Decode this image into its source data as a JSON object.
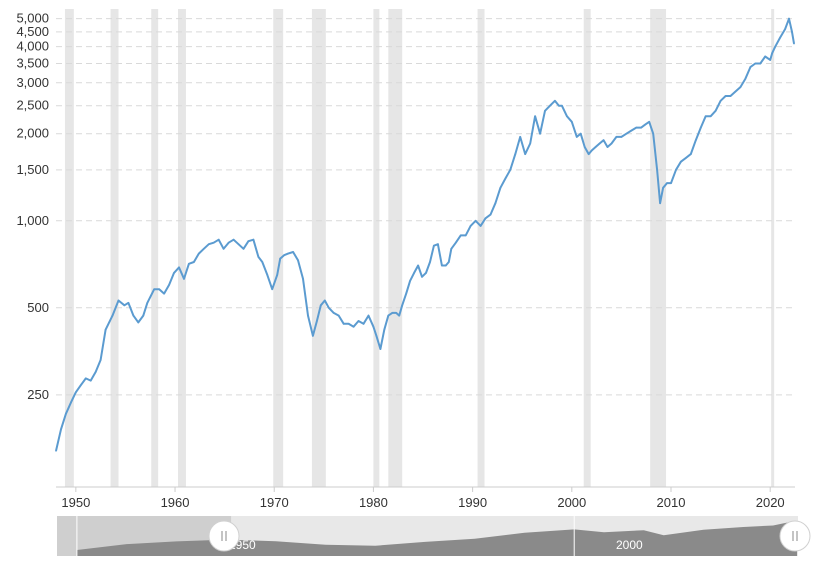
{
  "colors": {
    "series": "#5b9bd0",
    "recession": "#e6e6e6",
    "grid": "#d9d9d9",
    "navigator_fill": "#8a8a8a",
    "navigator_bg": "#e8e8e8",
    "navigator_selected": "#cfcfcf"
  },
  "chart_data": {
    "type": "line",
    "title": "",
    "xlabel": "",
    "ylabel": "",
    "y_scale": "log",
    "xlim": [
      1948,
      2022.5
    ],
    "ylim": [
      120,
      5400
    ],
    "grid": "horizontal dashed",
    "y_ticks": [
      {
        "value": 250,
        "label": "250"
      },
      {
        "value": 500,
        "label": "500"
      },
      {
        "value": 1000,
        "label": "1,000"
      },
      {
        "value": 1500,
        "label": "1,500"
      },
      {
        "value": 2000,
        "label": "2,000"
      },
      {
        "value": 2500,
        "label": "2,500"
      },
      {
        "value": 3000,
        "label": "3,000"
      },
      {
        "value": 3500,
        "label": "3,500"
      },
      {
        "value": 4000,
        "label": "4,000"
      },
      {
        "value": 4500,
        "label": "4,500"
      },
      {
        "value": 5000,
        "label": "5,000"
      }
    ],
    "x_ticks": [
      {
        "value": 1950,
        "label": "1950"
      },
      {
        "value": 1960,
        "label": "1960"
      },
      {
        "value": 1970,
        "label": "1970"
      },
      {
        "value": 1980,
        "label": "1980"
      },
      {
        "value": 1990,
        "label": "1990"
      },
      {
        "value": 2000,
        "label": "2000"
      },
      {
        "value": 2010,
        "label": "2010"
      },
      {
        "value": 2020,
        "label": "2020"
      }
    ],
    "recessions": [
      [
        1948.9,
        1949.8
      ],
      [
        1953.5,
        1954.3
      ],
      [
        1957.6,
        1958.3
      ],
      [
        1960.3,
        1961.1
      ],
      [
        1969.9,
        1970.9
      ],
      [
        1973.8,
        1975.2
      ],
      [
        1980.0,
        1980.6
      ],
      [
        1981.5,
        1982.9
      ],
      [
        1990.5,
        1991.2
      ],
      [
        2001.2,
        2001.9
      ],
      [
        2007.9,
        2009.5
      ],
      [
        2020.1,
        2020.4
      ]
    ],
    "series": [
      {
        "x": [
          1948.0,
          1948.5,
          1949.0,
          1949.5,
          1950.0,
          1950.5,
          1951.0,
          1951.5,
          1952.0,
          1952.5,
          1953.0,
          1953.7,
          1954.3,
          1954.9,
          1955.3,
          1955.8,
          1956.3,
          1956.8,
          1957.2,
          1957.9,
          1958.4,
          1958.9,
          1959.4,
          1959.9,
          1960.4,
          1960.9,
          1961.4,
          1961.9,
          1962.4,
          1962.9,
          1963.4,
          1963.9,
          1964.4,
          1964.9,
          1965.4,
          1965.9,
          1966.4,
          1966.9,
          1967.4,
          1967.9,
          1968.4,
          1968.8,
          1969.3,
          1969.8,
          1970.3,
          1970.6,
          1971.0,
          1971.4,
          1971.9,
          1972.4,
          1972.9,
          1973.4,
          1973.9,
          1974.3,
          1974.7,
          1975.1,
          1975.5,
          1976.0,
          1976.5,
          1977.0,
          1977.5,
          1978.0,
          1978.5,
          1979.0,
          1979.5,
          1980.0,
          1980.3,
          1980.7,
          1981.1,
          1981.5,
          1981.9,
          1982.3,
          1982.6,
          1982.9,
          1983.3,
          1983.7,
          1984.1,
          1984.5,
          1984.9,
          1985.3,
          1985.7,
          1986.1,
          1986.5,
          1986.9,
          1987.3,
          1987.6,
          1987.85,
          1988.3,
          1988.8,
          1989.3,
          1989.8,
          1990.3,
          1990.8,
          1991.3,
          1991.8,
          1992.3,
          1992.8,
          1993.3,
          1993.8,
          1994.3,
          1994.8,
          1995.3,
          1995.8,
          1996.3,
          1996.8,
          1997.3,
          1997.8,
          1998.3,
          1998.7,
          1999.0,
          1999.5,
          2000.0,
          2000.5,
          2000.9,
          2001.3,
          2001.7,
          2002.0,
          2002.4,
          2002.8,
          2003.2,
          2003.6,
          2004.0,
          2004.5,
          2005.0,
          2005.5,
          2006.0,
          2006.5,
          2007.0,
          2007.4,
          2007.8,
          2008.2,
          2008.6,
          2008.9,
          2009.2,
          2009.6,
          2010.0,
          2010.5,
          2011.0,
          2011.5,
          2012.0,
          2012.5,
          2013.0,
          2013.5,
          2014.0,
          2014.5,
          2015.0,
          2015.5,
          2016.0,
          2016.5,
          2017.0,
          2017.5,
          2018.0,
          2018.5,
          2019.0,
          2019.5,
          2020.0,
          2020.2,
          2020.5,
          2021.0,
          2021.5,
          2021.9,
          2022.2,
          2022.4
        ],
        "values": [
          160,
          190,
          215,
          235,
          255,
          270,
          285,
          280,
          300,
          330,
          420,
          470,
          530,
          510,
          520,
          470,
          445,
          470,
          520,
          580,
          580,
          560,
          600,
          660,
          690,
          630,
          710,
          720,
          770,
          800,
          830,
          840,
          860,
          800,
          840,
          860,
          830,
          800,
          850,
          860,
          750,
          720,
          650,
          580,
          650,
          740,
          760,
          770,
          780,
          730,
          630,
          470,
          400,
          450,
          510,
          530,
          500,
          480,
          470,
          440,
          440,
          430,
          450,
          440,
          470,
          430,
          400,
          360,
          420,
          470,
          480,
          480,
          470,
          510,
          560,
          620,
          660,
          700,
          640,
          660,
          720,
          820,
          830,
          700,
          700,
          720,
          800,
          840,
          890,
          890,
          960,
          1000,
          960,
          1020,
          1050,
          1150,
          1300,
          1400,
          1500,
          1700,
          1950,
          1700,
          1850,
          2300,
          2000,
          2400,
          2500,
          2600,
          2500,
          2500,
          2300,
          2200,
          1950,
          2000,
          1800,
          1700,
          1750,
          1800,
          1850,
          1900,
          1800,
          1850,
          1950,
          1950,
          2000,
          2050,
          2100,
          2100,
          2150,
          2200,
          2000,
          1500,
          1150,
          1300,
          1350,
          1350,
          1500,
          1600,
          1650,
          1700,
          1900,
          2100,
          2300,
          2300,
          2400,
          2600,
          2700,
          2700,
          2800,
          2900,
          3100,
          3400,
          3500,
          3500,
          3700,
          3600,
          3800,
          4000,
          4300,
          4600,
          5000,
          4500,
          4100
        ]
      }
    ]
  },
  "navigator": {
    "label_left": "1950",
    "label_right": "2000",
    "x": [
      1950,
      1955,
      1960,
      1965,
      1970,
      1975,
      1980,
      1985,
      1990,
      1995,
      2000,
      2003,
      2007,
      2009,
      2013,
      2017,
      2020,
      2021.5,
      2022.4
    ],
    "values": [
      280,
      520,
      690,
      830,
      700,
      480,
      440,
      650,
      900,
      1700,
      2400,
      1800,
      2200,
      1300,
      2300,
      3100,
      3600,
      5000,
      4200
    ],
    "selected_from": 1948,
    "selected_to": 1965.5
  }
}
